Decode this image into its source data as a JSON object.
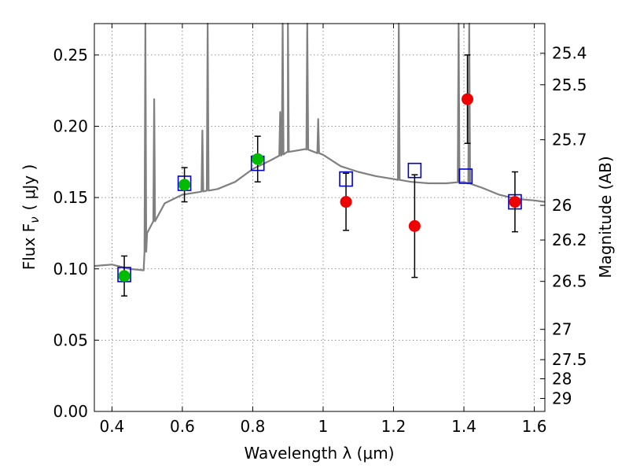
{
  "chart_data": {
    "type": "scatter",
    "title": "",
    "xlabel": "Wavelength  λ (μm)",
    "ylabel": "Flux  F",
    "ylabel_sub": "ν",
    "ylabel_unit": "( μJy )",
    "y2label": "Magnitude (AB)",
    "xlim": [
      0.35,
      1.63
    ],
    "ylim": [
      0.0,
      0.272
    ],
    "grid": true,
    "x_ticks": [
      {
        "value": 0.4,
        "label": "0.4"
      },
      {
        "value": 0.6,
        "label": "0.6"
      },
      {
        "value": 0.8,
        "label": "0.8"
      },
      {
        "value": 1.0,
        "label": "1"
      },
      {
        "value": 1.2,
        "label": "1.2"
      },
      {
        "value": 1.4,
        "label": "1.4"
      },
      {
        "value": 1.6,
        "label": "1.6"
      }
    ],
    "y_ticks": [
      {
        "value": 0.0,
        "label": "0.00"
      },
      {
        "value": 0.05,
        "label": "0.05"
      },
      {
        "value": 0.1,
        "label": "0.10"
      },
      {
        "value": 0.15,
        "label": "0.15"
      },
      {
        "value": 0.2,
        "label": "0.20"
      },
      {
        "value": 0.25,
        "label": "0.25"
      }
    ],
    "y2_ticks": [
      {
        "mag": 25.4,
        "label": "25.4"
      },
      {
        "mag": 25.5,
        "label": "25.5"
      },
      {
        "mag": 25.7,
        "label": "25.7"
      },
      {
        "mag": 26.0,
        "label": "26"
      },
      {
        "mag": 26.2,
        "label": "26.2"
      },
      {
        "mag": 26.5,
        "label": "26.5"
      },
      {
        "mag": 27.0,
        "label": "27"
      },
      {
        "mag": 27.5,
        "label": "27.5"
      },
      {
        "mag": 28.0,
        "label": "28"
      },
      {
        "mag": 29.0,
        "label": "29"
      }
    ],
    "observed_optical": {
      "color": "#00bb00",
      "points": [
        {
          "x": 0.435,
          "y": 0.095,
          "err": 0.014
        },
        {
          "x": 0.606,
          "y": 0.159,
          "err": 0.012
        },
        {
          "x": 0.814,
          "y": 0.177,
          "err": 0.016
        }
      ]
    },
    "observed_nir": {
      "color": "#ee0000",
      "points": [
        {
          "x": 1.065,
          "y": 0.147,
          "err": 0.02
        },
        {
          "x": 1.26,
          "y": 0.13,
          "err": 0.036
        },
        {
          "x": 1.41,
          "y": 0.219,
          "err": 0.031
        },
        {
          "x": 1.545,
          "y": 0.147,
          "err": 0.021
        }
      ]
    },
    "model_photometry": {
      "color": "#0000cc",
      "points": [
        {
          "x": 0.435,
          "y": 0.096
        },
        {
          "x": 0.606,
          "y": 0.16
        },
        {
          "x": 0.814,
          "y": 0.174
        },
        {
          "x": 1.065,
          "y": 0.163
        },
        {
          "x": 1.26,
          "y": 0.169
        },
        {
          "x": 1.405,
          "y": 0.165
        },
        {
          "x": 1.545,
          "y": 0.147
        }
      ]
    },
    "model_spectrum": {
      "color": "#808080",
      "continuum": [
        [
          0.35,
          0.102
        ],
        [
          0.4,
          0.103
        ],
        [
          0.45,
          0.1
        ],
        [
          0.49,
          0.099
        ],
        [
          0.5,
          0.125
        ],
        [
          0.55,
          0.146
        ],
        [
          0.6,
          0.152
        ],
        [
          0.65,
          0.154
        ],
        [
          0.7,
          0.156
        ],
        [
          0.75,
          0.161
        ],
        [
          0.8,
          0.17
        ],
        [
          0.85,
          0.176
        ],
        [
          0.9,
          0.182
        ],
        [
          0.95,
          0.184
        ],
        [
          1.0,
          0.18
        ],
        [
          1.05,
          0.172
        ],
        [
          1.1,
          0.168
        ],
        [
          1.15,
          0.165
        ],
        [
          1.2,
          0.163
        ],
        [
          1.25,
          0.161
        ],
        [
          1.3,
          0.16
        ],
        [
          1.35,
          0.16
        ],
        [
          1.4,
          0.161
        ],
        [
          1.45,
          0.157
        ],
        [
          1.5,
          0.152
        ],
        [
          1.55,
          0.149
        ],
        [
          1.6,
          0.148
        ],
        [
          1.63,
          0.147
        ]
      ],
      "emission_lines": [
        {
          "x": 0.495,
          "peak": 0.272
        },
        {
          "x": 0.52,
          "peak": 0.219
        },
        {
          "x": 0.657,
          "peak": 0.197
        },
        {
          "x": 0.672,
          "peak": 0.272
        },
        {
          "x": 0.878,
          "peak": 0.21
        },
        {
          "x": 0.885,
          "peak": 0.272
        },
        {
          "x": 0.9,
          "peak": 0.272
        },
        {
          "x": 0.955,
          "peak": 0.272
        },
        {
          "x": 0.986,
          "peak": 0.205
        },
        {
          "x": 1.215,
          "peak": 0.272
        },
        {
          "x": 1.385,
          "peak": 0.272
        },
        {
          "x": 1.415,
          "peak": 0.272
        }
      ]
    }
  }
}
